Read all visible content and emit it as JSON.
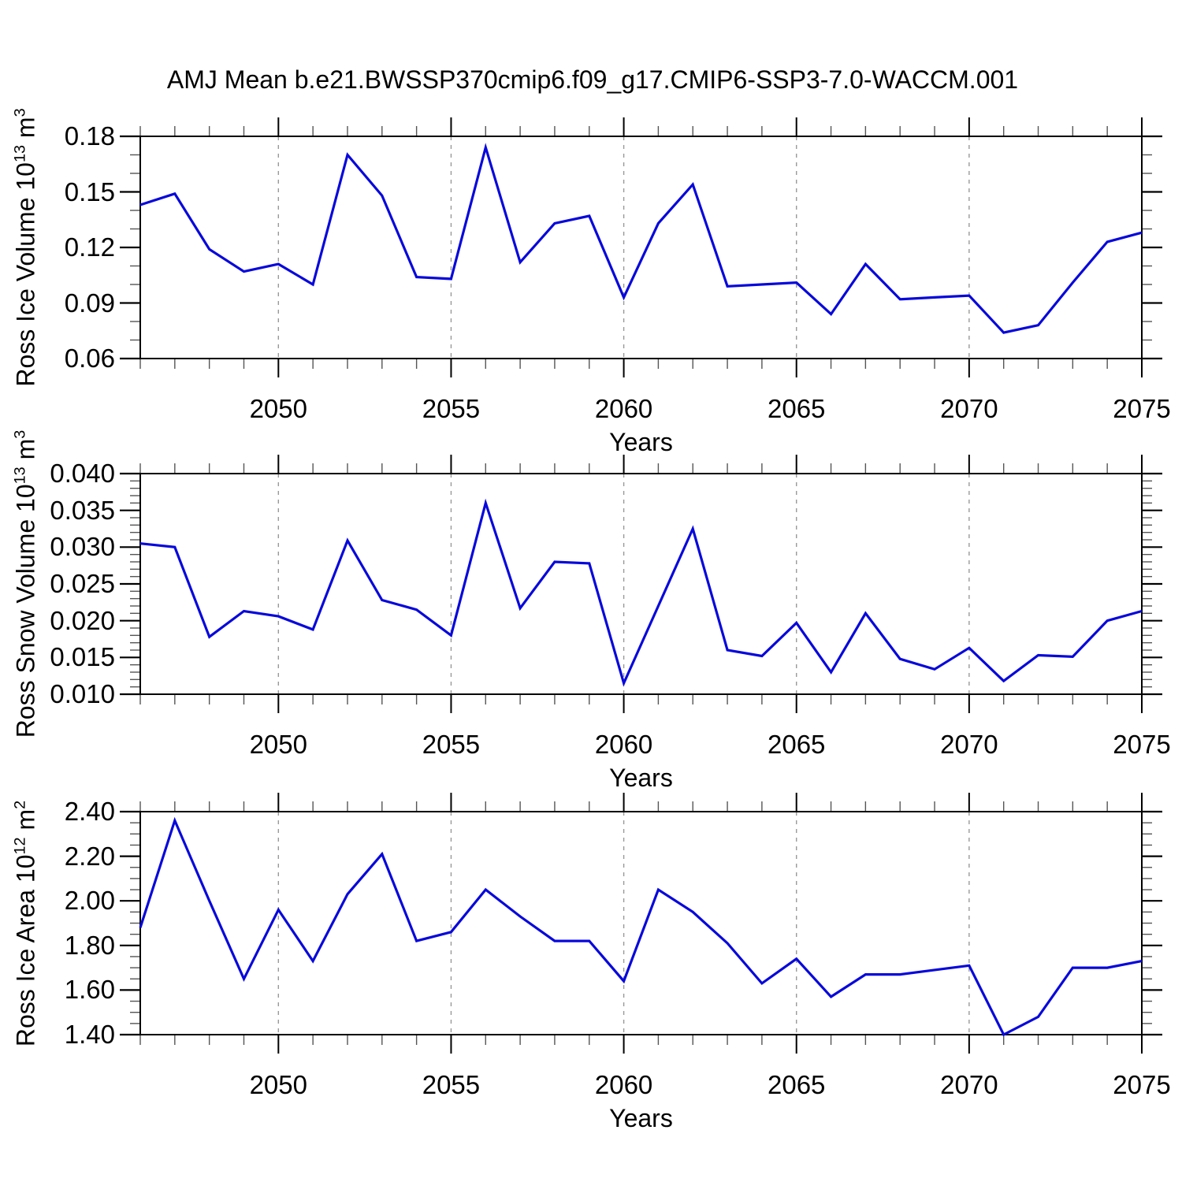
{
  "title": "AMJ Mean b.e21.BWSSP370cmip6.f09_g17.CMIP6-SSP3-7.0-WACCM.001",
  "colors": {
    "background": "#ffffff",
    "line": "#0808dc",
    "frame": "#000000",
    "grid": "#999999",
    "major_tick": "#000000",
    "minor_tick": "#555555",
    "text": "#000000"
  },
  "chart_data": [
    {
      "type": "line",
      "panel": "ross-ice-volume",
      "ylabel": "Ross Ice Volume 10^13 m^3",
      "ylabel_parts": [
        {
          "t": "Ross Ice Volume 10"
        },
        {
          "sup": "13"
        },
        {
          "t": " m"
        },
        {
          "sup": "3"
        }
      ],
      "xlabel": "Years",
      "xlim": [
        2046,
        2075
      ],
      "ylim": [
        0.06,
        0.18
      ],
      "y_minor_step": 0.01,
      "grid": "vertical-dashed",
      "legend": "none",
      "yticks": [
        {
          "v": 0.18,
          "label": "0.18"
        },
        {
          "v": 0.15,
          "label": "0.15"
        },
        {
          "v": 0.12,
          "label": "0.12"
        },
        {
          "v": 0.09,
          "label": "0.09"
        },
        {
          "v": 0.06,
          "label": "0.06"
        }
      ],
      "xticks": [
        {
          "v": 2050,
          "label": "2050"
        },
        {
          "v": 2055,
          "label": "2055"
        },
        {
          "v": 2060,
          "label": "2060"
        },
        {
          "v": 2065,
          "label": "2065"
        },
        {
          "v": 2070,
          "label": "2070"
        },
        {
          "v": 2075,
          "label": "2075"
        }
      ],
      "grid_years": [
        2050,
        2055,
        2060,
        2065,
        2070
      ],
      "x": [
        2046,
        2047,
        2048,
        2049,
        2050,
        2051,
        2052,
        2053,
        2054,
        2055,
        2056,
        2057,
        2058,
        2059,
        2060,
        2061,
        2062,
        2063,
        2064,
        2065,
        2066,
        2067,
        2068,
        2069,
        2070,
        2071,
        2072,
        2073,
        2074,
        2075
      ],
      "values": [
        0.143,
        0.149,
        0.119,
        0.107,
        0.111,
        0.1,
        0.17,
        0.148,
        0.104,
        0.103,
        0.174,
        0.112,
        0.133,
        0.137,
        0.093,
        0.133,
        0.154,
        0.099,
        0.1,
        0.101,
        0.084,
        0.111,
        0.092,
        0.093,
        0.094,
        0.074,
        0.078,
        0.101,
        0.123,
        0.128
      ]
    },
    {
      "type": "line",
      "panel": "ross-snow-volume",
      "ylabel": "Ross Snow Volume 10^13 m^3",
      "ylabel_parts": [
        {
          "t": "Ross Snow Volume 10"
        },
        {
          "sup": "13"
        },
        {
          "t": " m"
        },
        {
          "sup": "3"
        }
      ],
      "xlabel": "Years",
      "xlim": [
        2046,
        2075
      ],
      "ylim": [
        0.01,
        0.04
      ],
      "y_minor_step": 0.001,
      "grid": "vertical-dashed",
      "legend": "none",
      "yticks": [
        {
          "v": 0.04,
          "label": "0.040"
        },
        {
          "v": 0.035,
          "label": "0.035"
        },
        {
          "v": 0.03,
          "label": "0.030"
        },
        {
          "v": 0.025,
          "label": "0.025"
        },
        {
          "v": 0.02,
          "label": "0.020"
        },
        {
          "v": 0.015,
          "label": "0.015"
        },
        {
          "v": 0.01,
          "label": "0.010"
        }
      ],
      "xticks": [
        {
          "v": 2050,
          "label": "2050"
        },
        {
          "v": 2055,
          "label": "2055"
        },
        {
          "v": 2060,
          "label": "2060"
        },
        {
          "v": 2065,
          "label": "2065"
        },
        {
          "v": 2070,
          "label": "2070"
        },
        {
          "v": 2075,
          "label": "2075"
        }
      ],
      "grid_years": [
        2050,
        2055,
        2060,
        2065,
        2070
      ],
      "x": [
        2046,
        2047,
        2048,
        2049,
        2050,
        2051,
        2052,
        2053,
        2054,
        2055,
        2056,
        2057,
        2058,
        2059,
        2060,
        2061,
        2062,
        2063,
        2064,
        2065,
        2066,
        2067,
        2068,
        2069,
        2070,
        2071,
        2072,
        2073,
        2074,
        2075
      ],
      "values": [
        0.0305,
        0.03,
        0.0178,
        0.0213,
        0.0206,
        0.0188,
        0.0309,
        0.0228,
        0.0215,
        0.018,
        0.036,
        0.0217,
        0.028,
        0.0278,
        0.0115,
        0.022,
        0.0325,
        0.016,
        0.0152,
        0.0197,
        0.013,
        0.021,
        0.0148,
        0.0134,
        0.0163,
        0.0118,
        0.0153,
        0.0151,
        0.02,
        0.0213
      ]
    },
    {
      "type": "line",
      "panel": "ross-ice-area",
      "ylabel": "Ross Ice Area 10^12 m^2",
      "ylabel_parts": [
        {
          "t": "Ross Ice Area 10"
        },
        {
          "sup": "12"
        },
        {
          "t": " m"
        },
        {
          "sup": "2"
        }
      ],
      "xlabel": "Years",
      "xlim": [
        2046,
        2075
      ],
      "ylim": [
        1.4,
        2.4
      ],
      "y_minor_step": 0.05,
      "grid": "vertical-dashed",
      "legend": "none",
      "yticks": [
        {
          "v": 2.4,
          "label": "2.40"
        },
        {
          "v": 2.2,
          "label": "2.20"
        },
        {
          "v": 2.0,
          "label": "2.00"
        },
        {
          "v": 1.8,
          "label": "1.80"
        },
        {
          "v": 1.6,
          "label": "1.60"
        },
        {
          "v": 1.4,
          "label": "1.40"
        }
      ],
      "xticks": [
        {
          "v": 2050,
          "label": "2050"
        },
        {
          "v": 2055,
          "label": "2055"
        },
        {
          "v": 2060,
          "label": "2060"
        },
        {
          "v": 2065,
          "label": "2065"
        },
        {
          "v": 2070,
          "label": "2070"
        },
        {
          "v": 2075,
          "label": "2075"
        }
      ],
      "grid_years": [
        2050,
        2055,
        2060,
        2065,
        2070
      ],
      "x": [
        2046,
        2047,
        2048,
        2049,
        2050,
        2051,
        2052,
        2053,
        2054,
        2055,
        2056,
        2057,
        2058,
        2059,
        2060,
        2061,
        2062,
        2063,
        2064,
        2065,
        2066,
        2067,
        2068,
        2069,
        2070,
        2071,
        2072,
        2073,
        2074,
        2075
      ],
      "values": [
        1.88,
        2.36,
        2.0,
        1.65,
        1.96,
        1.73,
        2.03,
        2.21,
        1.82,
        1.86,
        2.05,
        1.93,
        1.82,
        1.82,
        1.64,
        2.05,
        1.95,
        1.81,
        1.63,
        1.74,
        1.57,
        1.67,
        1.67,
        1.69,
        1.71,
        1.4,
        1.48,
        1.7,
        1.7,
        1.73
      ]
    }
  ]
}
